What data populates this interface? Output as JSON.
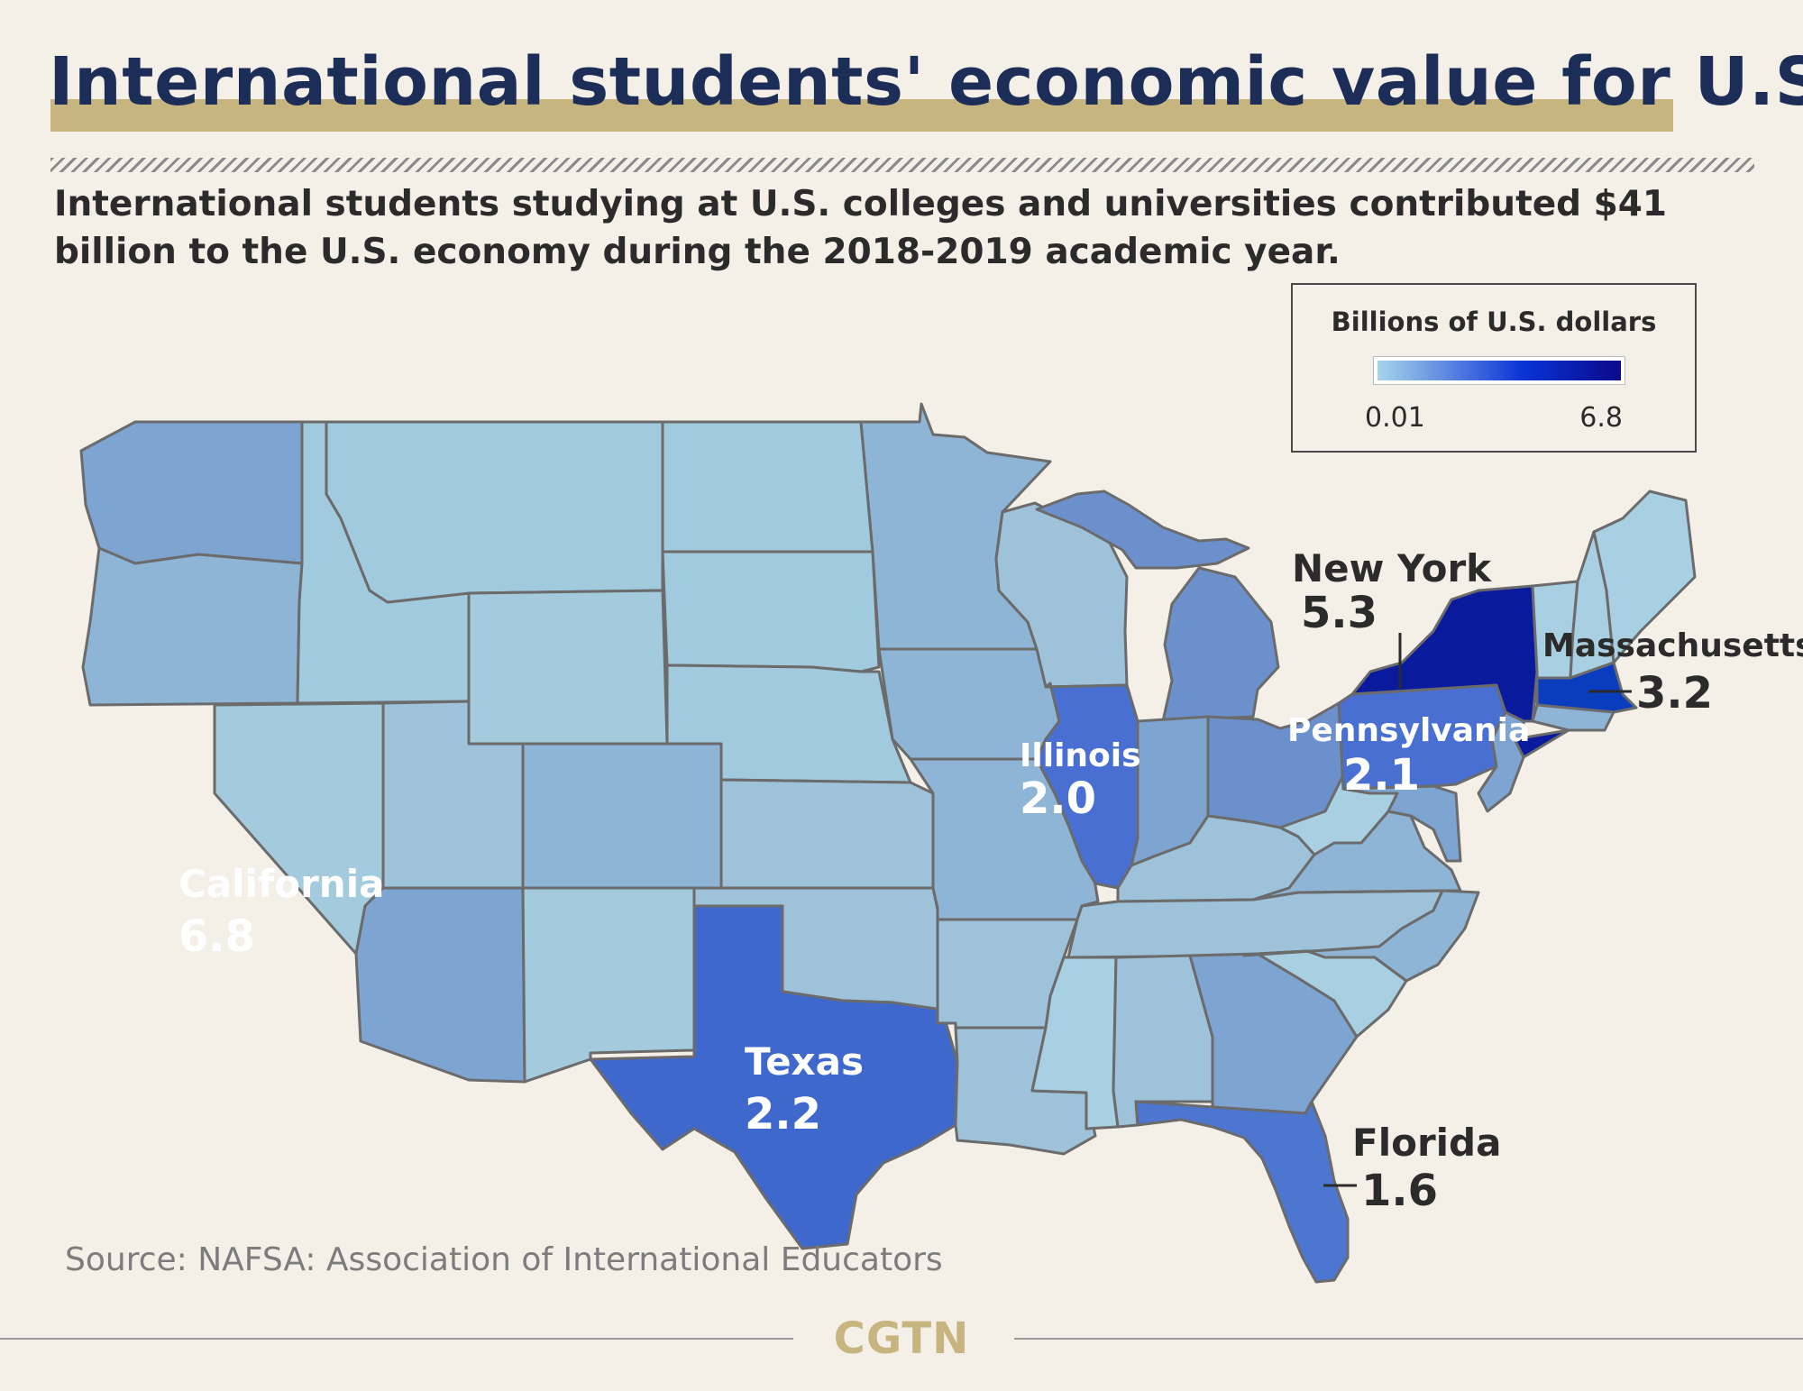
{
  "header": {
    "title": "International students' economic value for U.S.",
    "subtitle": "International students studying at U.S. colleges and universities contributed $41 billion to the U.S. economy during the 2018-2019 academic year."
  },
  "legend": {
    "title": "Billions of U.S. dollars",
    "min_label": "0.01",
    "max_label": "6.8",
    "color_low": "#a7d4ea",
    "color_mid": "#0a33d6",
    "color_high": "#0a0a8a"
  },
  "map": {
    "region": "Contiguous United States",
    "border_color": "#6b6b6b",
    "highlighted_states": [
      {
        "name": "California",
        "value": "6.8",
        "color": "#07078a"
      },
      {
        "name": "New York",
        "value": "5.3",
        "color": "#0a1a9c"
      },
      {
        "name": "Massachusetts",
        "value": "3.2",
        "color": "#0a3dbe"
      },
      {
        "name": "Texas",
        "value": "2.2",
        "color": "#3f68cc"
      },
      {
        "name": "Pennsylvania",
        "value": "2.1",
        "color": "#4a6fd2"
      },
      {
        "name": "Illinois",
        "value": "2.0",
        "color": "#4a6fd2"
      },
      {
        "name": "Florida",
        "value": "1.6",
        "color": "#4d76d0"
      }
    ]
  },
  "footer": {
    "source": "Source: NAFSA: Association of International Educators",
    "brand": "CGTN"
  }
}
